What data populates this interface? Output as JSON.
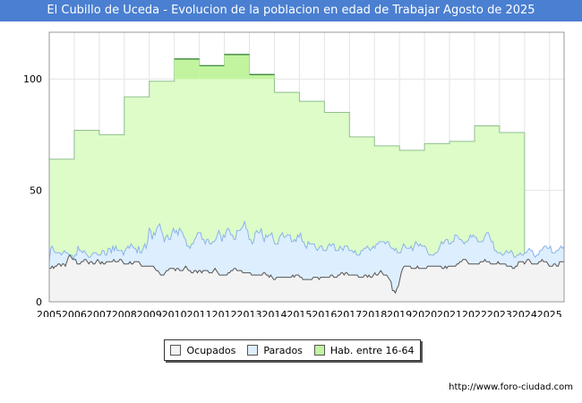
{
  "title": "El Cubillo de Uceda - Evolucion de la poblacion en edad de Trabajar Agosto de 2025",
  "watermark": "FORO-CIUDAD.COM",
  "source": "http://www.foro-ciudad.com",
  "colors": {
    "title_bg": "#4a7fd1",
    "ocupados_fill": "#f3f3f3",
    "ocupados_line": "#555555",
    "parados_fill": "#ddeeff",
    "parados_line": "#8ab4e8",
    "hab_fill": "#ddfcc8",
    "hab_line": "#8fbf8f",
    "hab_highlight": "#c2f4a0",
    "hab_highlight_line": "#2e7d2e"
  },
  "chart_data": {
    "type": "area",
    "title": "El Cubillo de Uceda - Evolucion de la poblacion en edad de Trabajar Agosto de 2025",
    "xlabel": "",
    "ylabel": "",
    "x_ticks": [
      "2005",
      "2006",
      "2007",
      "2008",
      "2009",
      "2010",
      "2011",
      "2012",
      "2013",
      "2014",
      "2015",
      "2016",
      "2017",
      "2018",
      "2019",
      "2020",
      "2021",
      "2022",
      "2023",
      "2024",
      "2025"
    ],
    "xlim": [
      2005,
      2025.58
    ],
    "y_ticks": [
      0,
      50,
      100
    ],
    "ylim": [
      0,
      121
    ],
    "grid": true,
    "legend_position": "bottom",
    "series": [
      {
        "name": "Hab. entre 16-64",
        "kind": "annual-step",
        "years": [
          2005,
          2006,
          2007,
          2008,
          2009,
          2010,
          2011,
          2012,
          2013,
          2014,
          2015,
          2016,
          2017,
          2018,
          2019,
          2020,
          2021,
          2022,
          2023
        ],
        "values": [
          64,
          77,
          75,
          92,
          99,
          109,
          106,
          111,
          102,
          94,
          90,
          85,
          74,
          70,
          68,
          71,
          72,
          79,
          76
        ]
      },
      {
        "name": "Parados",
        "kind": "monthly",
        "x_start": 2005,
        "x_end": 2025.58,
        "values": [
          18,
          24,
          25,
          23,
          22,
          22,
          22,
          22,
          21,
          22,
          23,
          22,
          22,
          21,
          21,
          21,
          19,
          21,
          21,
          25,
          23,
          23,
          22,
          23,
          22,
          21,
          20,
          20,
          21,
          22,
          22,
          22,
          21,
          21,
          21,
          23,
          23,
          21,
          21,
          24,
          24,
          22,
          25,
          23,
          25,
          23,
          23,
          23,
          23,
          21,
          23,
          24,
          25,
          24,
          26,
          25,
          24,
          24,
          22,
          25,
          22,
          22,
          24,
          26,
          24,
          27,
          33,
          32,
          28,
          31,
          30,
          33,
          34,
          35,
          32,
          30,
          27,
          29,
          30,
          28,
          28,
          31,
          33,
          31,
          32,
          30,
          33,
          32,
          31,
          29,
          28,
          25,
          25,
          24,
          26,
          26,
          28,
          29,
          31,
          31,
          31,
          28,
          28,
          26,
          28,
          28,
          26,
          26,
          27,
          27,
          28,
          30,
          32,
          30,
          27,
          30,
          29,
          32,
          33,
          32,
          30,
          30,
          28,
          28,
          32,
          32,
          32,
          33,
          34,
          36,
          33,
          32,
          28,
          28,
          26,
          27,
          31,
          32,
          31,
          31,
          33,
          29,
          27,
          30,
          29,
          30,
          30,
          31,
          28,
          26,
          26,
          26,
          29,
          30,
          31,
          29,
          29,
          30,
          30,
          30,
          27,
          27,
          28,
          27,
          30,
          29,
          31,
          27,
          27,
          25,
          24,
          27,
          26,
          26,
          26,
          26,
          24,
          23,
          24,
          25,
          25,
          23,
          23,
          23,
          25,
          26,
          25,
          26,
          26,
          23,
          23,
          23,
          25,
          24,
          23,
          25,
          25,
          25,
          23,
          23,
          23,
          22,
          23,
          21,
          21,
          21,
          23,
          23,
          24,
          24,
          25,
          24,
          23,
          24,
          25,
          24,
          26,
          26,
          27,
          27,
          27,
          27,
          26,
          27,
          27,
          25,
          24,
          24,
          23,
          24,
          22,
          22,
          22,
          24,
          26,
          25,
          24,
          24,
          24,
          25,
          23,
          25,
          27,
          26,
          25,
          26,
          25,
          25,
          25,
          24,
          22,
          21,
          21,
          21,
          21,
          22,
          22,
          23,
          25,
          27,
          26,
          27,
          28,
          28,
          26,
          26,
          27,
          27,
          30,
          30,
          29,
          28,
          28,
          27,
          26,
          27,
          27,
          28,
          30,
          29,
          30,
          29,
          29,
          27,
          27,
          27,
          27,
          28,
          30,
          31,
          31,
          29,
          27,
          27,
          23,
          23,
          22,
          22,
          22,
          21,
          21,
          22,
          23,
          22,
          22,
          23,
          22,
          20,
          20,
          21,
          21,
          22,
          21,
          21,
          22,
          22,
          23,
          24,
          23,
          23,
          21,
          20,
          21,
          21,
          23,
          23,
          24,
          25,
          25,
          24,
          24,
          25,
          22,
          22,
          22,
          23,
          23,
          24,
          25,
          24,
          25
        ]
      },
      {
        "name": "Ocupados",
        "kind": "monthly",
        "x_start": 2005,
        "x_end": 2025.58,
        "values": [
          15,
          15,
          16,
          15,
          16,
          16,
          17,
          17,
          16,
          17,
          17,
          16,
          18,
          20,
          21,
          20,
          19,
          19,
          19,
          17,
          17,
          17,
          18,
          18,
          19,
          19,
          18,
          17,
          18,
          18,
          17,
          17,
          18,
          19,
          18,
          17,
          18,
          17,
          17,
          18,
          18,
          18,
          18,
          18,
          19,
          18,
          18,
          18,
          19,
          19,
          18,
          17,
          17,
          17,
          17,
          18,
          17,
          17,
          18,
          18,
          18,
          18,
          17,
          16,
          16,
          16,
          16,
          16,
          16,
          16,
          16,
          16,
          15,
          14,
          14,
          13,
          12,
          12,
          12,
          13,
          14,
          14,
          15,
          15,
          15,
          15,
          14,
          15,
          15,
          14,
          14,
          14,
          15,
          16,
          15,
          14,
          14,
          13,
          13,
          14,
          14,
          13,
          14,
          14,
          13,
          14,
          14,
          14,
          14,
          13,
          13,
          13,
          14,
          15,
          14,
          13,
          12,
          12,
          12,
          12,
          12,
          12,
          13,
          13,
          14,
          14,
          15,
          15,
          14,
          14,
          14,
          14,
          13,
          13,
          13,
          13,
          13,
          13,
          12,
          12,
          12,
          12,
          12,
          12,
          12,
          12,
          13,
          13,
          12,
          12,
          11,
          12,
          11,
          10,
          10,
          11,
          11,
          11,
          11,
          11,
          11,
          11,
          11,
          11,
          11,
          11,
          12,
          11,
          12,
          12,
          12,
          11,
          11,
          10,
          10,
          10,
          10,
          10,
          10,
          10,
          11,
          11,
          11,
          11,
          10,
          11,
          11,
          11,
          11,
          11,
          11,
          11,
          12,
          12,
          11,
          11,
          11,
          12,
          12,
          13,
          13,
          12,
          13,
          13,
          12,
          12,
          12,
          12,
          12,
          12,
          12,
          11,
          11,
          11,
          11,
          12,
          12,
          11,
          12,
          11,
          11,
          12,
          13,
          12,
          12,
          13,
          14,
          13,
          12,
          12,
          12,
          11,
          10,
          9,
          5,
          5,
          4,
          6,
          7,
          10,
          13,
          15,
          16,
          16,
          16,
          16,
          16,
          15,
          15,
          15,
          15,
          16,
          15,
          15,
          15,
          15,
          15,
          15,
          16,
          16,
          16,
          16,
          16,
          16,
          16,
          16,
          16,
          16,
          15,
          15,
          16,
          15,
          16,
          16,
          16,
          16,
          16,
          16,
          17,
          17,
          18,
          18,
          19,
          19,
          19,
          18,
          17,
          17,
          17,
          17,
          17,
          17,
          17,
          17,
          18,
          18,
          18,
          19,
          18,
          18,
          18,
          17,
          17,
          17,
          17,
          17,
          18,
          17,
          17,
          17,
          17,
          17,
          16,
          16,
          16,
          16,
          15,
          15,
          16,
          16,
          18,
          18,
          18,
          18,
          17,
          18,
          19,
          19,
          18,
          17,
          17,
          17,
          17,
          17,
          18,
          18,
          19,
          18,
          18,
          18,
          17,
          16,
          16,
          16,
          17,
          17,
          16,
          16,
          18,
          18,
          18,
          18
        ]
      }
    ]
  },
  "legend": [
    {
      "label": "Ocupados",
      "color": "#f3f3f3"
    },
    {
      "label": "Parados",
      "color": "#ddeeff"
    },
    {
      "label": "Hab. entre 16-64",
      "color": "#c2f4a0"
    }
  ]
}
